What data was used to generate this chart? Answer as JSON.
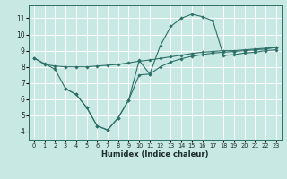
{
  "bg_color": "#c8e8e4",
  "grid_color": "#ffffff",
  "line_color": "#2d7068",
  "xlabel": "Humidex (Indice chaleur)",
  "ylim": [
    3.5,
    11.8
  ],
  "xlim": [
    -0.5,
    23.5
  ],
  "yticks": [
    4,
    5,
    6,
    7,
    8,
    9,
    10,
    11
  ],
  "xticks": [
    0,
    1,
    2,
    3,
    4,
    5,
    6,
    7,
    8,
    9,
    10,
    11,
    12,
    13,
    14,
    15,
    16,
    17,
    18,
    19,
    20,
    21,
    22,
    23
  ],
  "line1_x": [
    0,
    1,
    2,
    3,
    4,
    5,
    6,
    7,
    8,
    9,
    10,
    11,
    12,
    13,
    14,
    15,
    16,
    17,
    18,
    19,
    20,
    21,
    22,
    23
  ],
  "line1_y": [
    8.55,
    8.2,
    7.85,
    6.65,
    6.3,
    5.5,
    4.35,
    4.1,
    4.85,
    5.95,
    8.4,
    7.55,
    9.3,
    10.5,
    11.0,
    11.25,
    11.1,
    10.85,
    8.7,
    8.75,
    8.85,
    8.9,
    9.0,
    9.05
  ],
  "line2_x": [
    0,
    1,
    2,
    3,
    4,
    5,
    6,
    7,
    8,
    9,
    10,
    11,
    12,
    13,
    14,
    15,
    16,
    17,
    18,
    19,
    20,
    21,
    22,
    23
  ],
  "line2_y": [
    8.55,
    8.15,
    8.05,
    8.0,
    8.0,
    8.0,
    8.05,
    8.1,
    8.15,
    8.25,
    8.35,
    8.42,
    8.52,
    8.62,
    8.72,
    8.82,
    8.9,
    8.95,
    9.0,
    9.0,
    9.05,
    9.1,
    9.15,
    9.2
  ],
  "line3_x": [
    3,
    4,
    5,
    6,
    7,
    8,
    9,
    10,
    11,
    12,
    13,
    14,
    15,
    16,
    17,
    18,
    19,
    20,
    21,
    22,
    23
  ],
  "line3_y": [
    6.65,
    6.3,
    5.5,
    4.35,
    4.1,
    4.85,
    5.95,
    7.5,
    7.55,
    8.0,
    8.3,
    8.5,
    8.65,
    8.75,
    8.85,
    8.9,
    8.95,
    9.0,
    9.05,
    9.1,
    9.2
  ]
}
